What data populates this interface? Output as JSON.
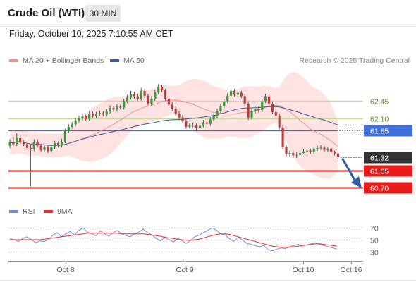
{
  "header": {
    "title": "Crude Oil (WTI)",
    "timeframe": "30 MIN"
  },
  "datetime": "Friday, October 10, 2025 7:10:55 AM CET",
  "legend": {
    "ma20_label": "MA 20 + Bollinger Bands",
    "ma50_label": "MA 50",
    "copyright": "Research © 2025 Trading Central"
  },
  "rsi_legend": {
    "rsi_label": "RSI",
    "ma_label": "9MA"
  },
  "colors": {
    "bull": "#3a9a3a",
    "bear": "#c43a3a",
    "ma20": "#f08f8f",
    "ma50": "#3f5a9c",
    "bollinger": "#ffd8d8",
    "resistance": "#c3dc96",
    "pivot": "#3f6fd8",
    "support": "#e81a1a",
    "last": "#333333",
    "arrow": "#2e5ba8",
    "rsi": "#6f8bd6",
    "rsi_ma": "#e03030"
  },
  "chart_data": [
    {
      "type": "candlestick",
      "title": "Crude Oil (WTI)",
      "interval": "30 MIN",
      "x_ticks": [
        "Oct 8",
        "Oct 9",
        "Oct 10",
        "Oct 16"
      ],
      "ylim": [
        60.5,
        63.0
      ],
      "levels": [
        {
          "value": 62.45,
          "label": "62.45",
          "kind": "resistance"
        },
        {
          "value": 62.1,
          "label": "62.10",
          "kind": "resistance"
        },
        {
          "value": 61.85,
          "label": "61.85",
          "kind": "pivot"
        },
        {
          "value": 61.32,
          "label": "61.32",
          "kind": "last"
        },
        {
          "value": 61.05,
          "label": "61.05",
          "kind": "support"
        },
        {
          "value": 60.7,
          "label": "60.70",
          "kind": "support"
        }
      ],
      "series": [
        {
          "name": "MA 20 + Bollinger Bands",
          "values": []
        },
        {
          "name": "MA 50",
          "values": []
        }
      ],
      "close": [
        61.62,
        61.58,
        61.7,
        61.61,
        61.58,
        61.5,
        61.48,
        61.62,
        61.55,
        61.46,
        61.52,
        61.44,
        61.52,
        61.6,
        61.55,
        61.63,
        61.84,
        61.93,
        61.98,
        62.06,
        62.1,
        62.14,
        62.09,
        62.2,
        62.15,
        62.19,
        62.21,
        62.18,
        62.24,
        62.31,
        62.28,
        62.34,
        62.32,
        62.45,
        62.52,
        62.6,
        62.55,
        62.5,
        62.66,
        62.56,
        62.4,
        62.5,
        62.63,
        62.74,
        62.67,
        62.5,
        62.38,
        62.3,
        62.2,
        62.12,
        62.04,
        61.93,
        61.96,
        61.97,
        61.9,
        61.95,
        62.02,
        61.99,
        62.08,
        62.15,
        62.25,
        62.35,
        62.45,
        62.56,
        62.66,
        62.58,
        62.62,
        62.55,
        62.4,
        62.12,
        62.24,
        62.3,
        62.27,
        62.45,
        62.55,
        62.4,
        62.23,
        62.16,
        61.92,
        61.52,
        61.38,
        61.4,
        61.35,
        61.36,
        61.4,
        61.43,
        61.45,
        61.42,
        61.48,
        61.5,
        61.51,
        61.46,
        61.49,
        61.43,
        61.39,
        61.32
      ],
      "open": [
        61.55,
        61.62,
        61.58,
        61.7,
        61.61,
        61.58,
        61.5,
        61.48,
        61.62,
        61.55,
        61.46,
        61.52,
        61.44,
        61.52,
        61.6,
        61.55,
        61.63,
        61.84,
        61.93,
        61.98,
        62.06,
        62.1,
        62.14,
        62.09,
        62.2,
        62.15,
        62.19,
        62.21,
        62.18,
        62.24,
        62.31,
        62.28,
        62.34,
        62.32,
        62.45,
        62.52,
        62.6,
        62.55,
        62.5,
        62.66,
        62.56,
        62.4,
        62.5,
        62.63,
        62.74,
        62.67,
        62.5,
        62.38,
        62.3,
        62.2,
        62.12,
        62.04,
        61.93,
        61.96,
        61.97,
        61.9,
        61.95,
        62.02,
        61.99,
        62.08,
        62.15,
        62.25,
        62.35,
        62.45,
        62.56,
        62.66,
        62.58,
        62.62,
        62.55,
        62.4,
        62.12,
        62.24,
        62.3,
        62.27,
        62.45,
        62.55,
        62.4,
        62.23,
        62.16,
        61.92,
        61.52,
        61.38,
        61.4,
        61.35,
        61.36,
        61.4,
        61.43,
        61.45,
        61.42,
        61.48,
        61.5,
        61.51,
        61.46,
        61.49,
        61.43,
        61.39
      ],
      "high": [
        61.68,
        61.72,
        61.8,
        61.76,
        61.66,
        61.63,
        61.57,
        61.68,
        61.68,
        61.59,
        61.57,
        61.56,
        61.57,
        61.65,
        61.64,
        61.69,
        61.89,
        61.98,
        62.03,
        62.11,
        62.16,
        62.19,
        62.18,
        62.25,
        62.24,
        62.23,
        62.26,
        62.25,
        62.29,
        62.36,
        62.35,
        62.39,
        62.38,
        62.5,
        62.58,
        62.66,
        62.64,
        62.6,
        62.72,
        62.7,
        62.6,
        62.55,
        62.68,
        62.8,
        62.78,
        62.7,
        62.55,
        62.43,
        62.35,
        62.25,
        62.17,
        62.08,
        62.0,
        62.02,
        62.0,
        62.0,
        62.07,
        62.06,
        62.13,
        62.2,
        62.3,
        62.4,
        62.5,
        62.61,
        62.72,
        62.7,
        62.67,
        62.66,
        62.6,
        62.45,
        62.29,
        62.35,
        62.34,
        62.5,
        62.6,
        62.59,
        62.45,
        62.3,
        62.2,
        61.96,
        61.56,
        61.45,
        61.45,
        61.41,
        61.45,
        61.48,
        61.5,
        61.49,
        61.53,
        61.55,
        61.56,
        61.54,
        61.53,
        61.52,
        61.45,
        61.42
      ],
      "low": [
        61.5,
        61.54,
        61.54,
        61.57,
        61.54,
        61.45,
        60.72,
        61.44,
        61.51,
        61.42,
        61.42,
        61.4,
        61.41,
        61.48,
        61.51,
        61.51,
        61.6,
        61.8,
        61.89,
        61.94,
        62.02,
        62.06,
        62.05,
        62.05,
        62.11,
        62.11,
        62.15,
        62.14,
        62.14,
        62.2,
        62.24,
        62.24,
        62.28,
        62.28,
        62.41,
        62.48,
        62.5,
        62.46,
        62.46,
        62.51,
        62.36,
        62.36,
        62.46,
        62.59,
        62.63,
        62.46,
        62.34,
        62.26,
        62.16,
        62.08,
        62.0,
        61.89,
        61.9,
        61.92,
        61.86,
        61.88,
        61.92,
        61.96,
        61.95,
        62.04,
        62.11,
        62.21,
        62.31,
        62.41,
        62.52,
        62.54,
        62.54,
        62.51,
        62.36,
        62.07,
        62.08,
        62.2,
        62.22,
        62.23,
        62.41,
        62.36,
        62.19,
        62.1,
        61.88,
        61.47,
        61.33,
        61.33,
        61.3,
        61.3,
        61.34,
        61.38,
        61.4,
        61.38,
        61.38,
        61.44,
        61.46,
        61.42,
        61.42,
        61.39,
        61.35,
        61.28
      ]
    },
    {
      "type": "line",
      "title": "RSI",
      "ylim": [
        20,
        80
      ],
      "y_ticks": [
        30,
        50,
        70
      ],
      "series": [
        {
          "name": "RSI",
          "values": [
            52,
            50,
            47,
            52,
            55,
            50,
            45,
            48,
            47,
            50,
            58,
            62,
            55,
            60,
            64,
            58,
            66,
            70,
            63,
            60,
            57,
            65,
            60,
            56,
            62,
            66,
            60,
            57,
            55,
            60,
            63,
            68,
            62,
            58,
            52,
            48,
            55,
            50,
            46,
            52,
            48,
            44,
            49,
            55,
            58,
            62,
            66,
            70,
            66,
            60,
            58,
            52,
            47,
            54,
            50,
            44,
            42,
            40,
            38,
            40,
            33,
            31,
            34,
            36,
            35,
            38,
            40,
            42,
            40,
            41,
            43,
            45,
            42,
            40,
            38,
            36,
            34
          ]
        },
        {
          "name": "9MA",
          "values": [
            50,
            50,
            50,
            50,
            50,
            50,
            50,
            50,
            51,
            52,
            53,
            54,
            55,
            56,
            57,
            58,
            59,
            60,
            61,
            61,
            61,
            61,
            61,
            61,
            61,
            61,
            60,
            60,
            60,
            60,
            60,
            60,
            59,
            58,
            57,
            56,
            54,
            53,
            52,
            51,
            50,
            49,
            49,
            50,
            51,
            53,
            55,
            57,
            59,
            60,
            60,
            59,
            57,
            55,
            53,
            51,
            49,
            47,
            45,
            43,
            41,
            39,
            38,
            37,
            37,
            37,
            38,
            39,
            40,
            41,
            42,
            43,
            43,
            42,
            41,
            40,
            39
          ]
        }
      ]
    }
  ]
}
